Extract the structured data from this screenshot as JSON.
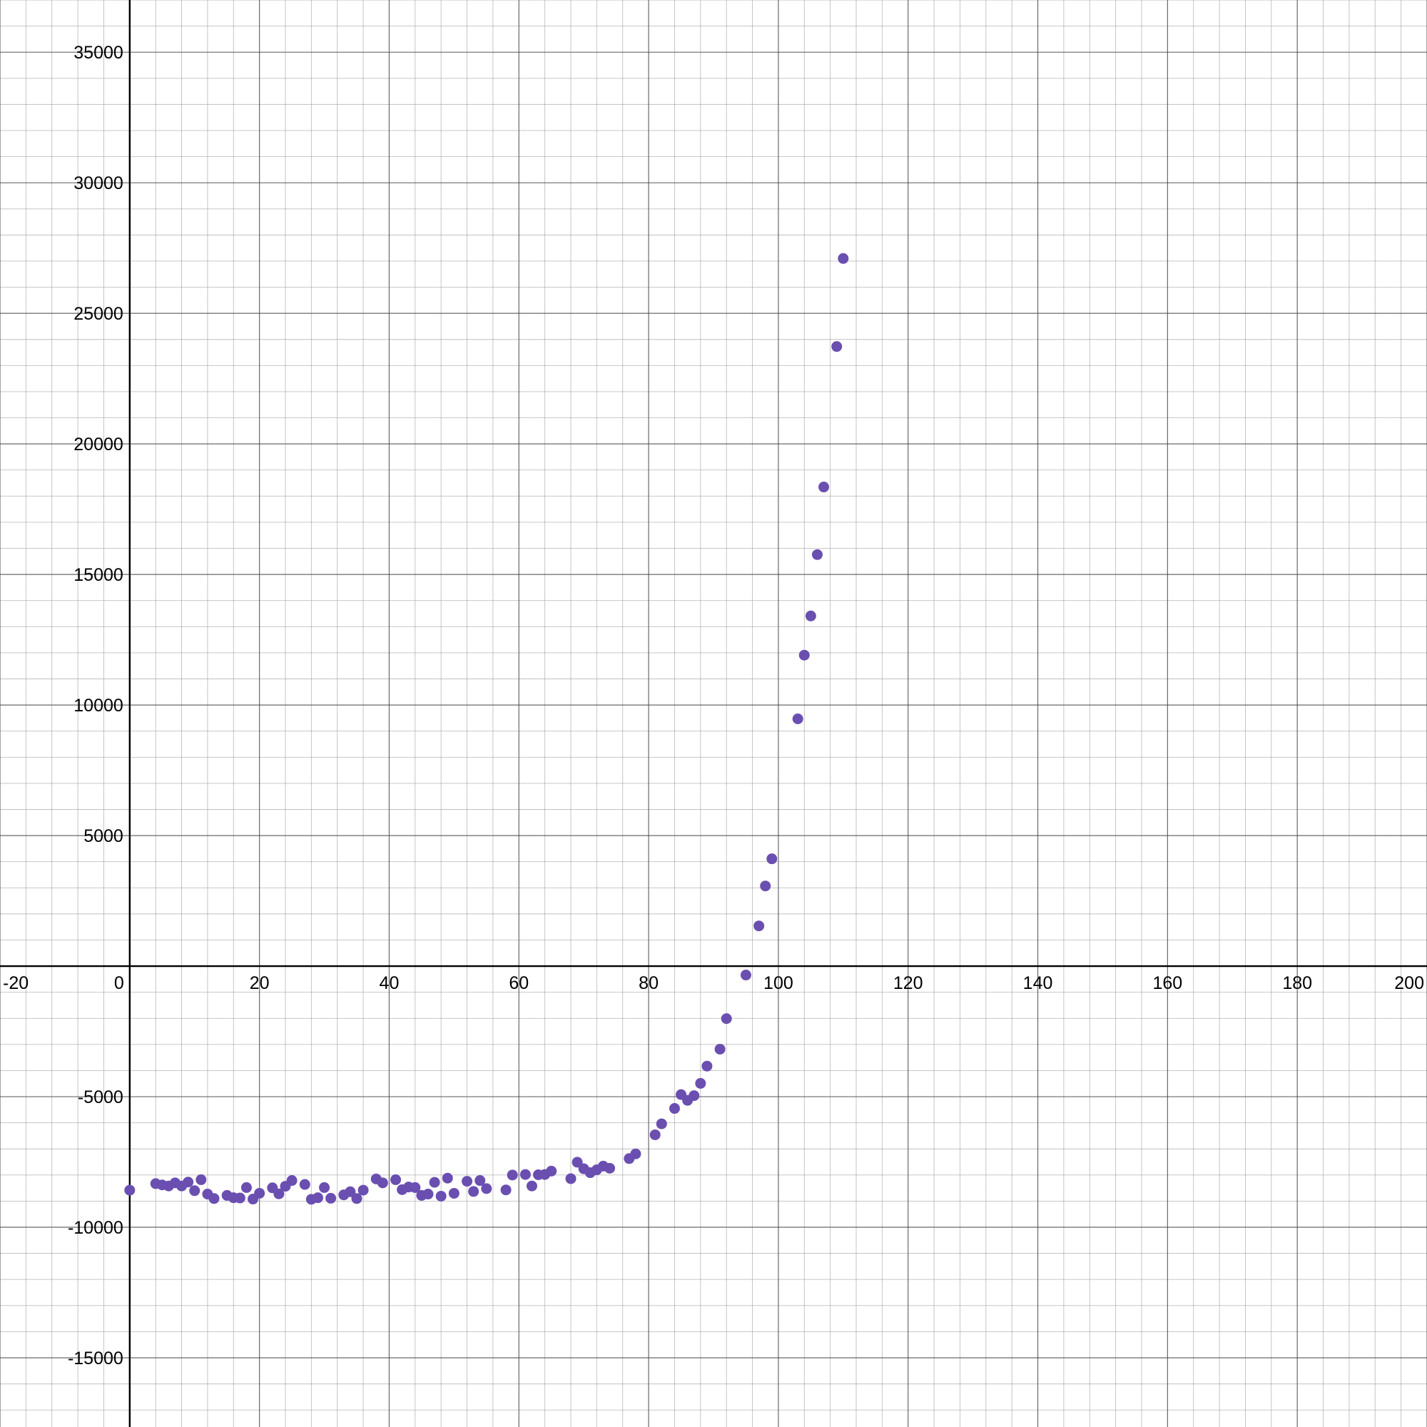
{
  "chart_data": {
    "type": "scatter",
    "title": "",
    "xlabel": "",
    "ylabel": "",
    "xlim": [
      -20,
      200
    ],
    "ylim": [
      -17650,
      37000
    ],
    "x_major_step": 20,
    "x_minor_step": 4,
    "y_major_step": 5000,
    "y_minor_step": 1000,
    "grid": true,
    "legend": "none",
    "point_color": "#6a4fb0",
    "x_tick_labels": [
      "-20",
      "0",
      "20",
      "40",
      "60",
      "80",
      "100",
      "120",
      "140",
      "160",
      "180",
      "200"
    ],
    "y_tick_labels": [
      "35000",
      "30000",
      "25000",
      "20000",
      "15000",
      "10000",
      "5000",
      "-5000",
      "-10000",
      "-15000"
    ],
    "series": [
      {
        "points": [
          [
            0,
            -8580
          ],
          [
            4,
            -8330
          ],
          [
            5,
            -8380
          ],
          [
            6,
            -8420
          ],
          [
            7,
            -8300
          ],
          [
            8,
            -8420
          ],
          [
            9,
            -8270
          ],
          [
            10,
            -8600
          ],
          [
            11,
            -8180
          ],
          [
            12,
            -8730
          ],
          [
            13,
            -8900
          ],
          [
            15,
            -8780
          ],
          [
            16,
            -8870
          ],
          [
            17,
            -8880
          ],
          [
            18,
            -8480
          ],
          [
            19,
            -8920
          ],
          [
            20,
            -8700
          ],
          [
            22,
            -8490
          ],
          [
            23,
            -8720
          ],
          [
            24,
            -8430
          ],
          [
            25,
            -8210
          ],
          [
            27,
            -8360
          ],
          [
            28,
            -8930
          ],
          [
            29,
            -8870
          ],
          [
            30,
            -8480
          ],
          [
            31,
            -8890
          ],
          [
            33,
            -8760
          ],
          [
            34,
            -8640
          ],
          [
            35,
            -8900
          ],
          [
            36,
            -8580
          ],
          [
            38,
            -8150
          ],
          [
            39,
            -8300
          ],
          [
            41,
            -8180
          ],
          [
            42,
            -8560
          ],
          [
            43,
            -8460
          ],
          [
            44,
            -8480
          ],
          [
            45,
            -8780
          ],
          [
            46,
            -8730
          ],
          [
            47,
            -8280
          ],
          [
            48,
            -8810
          ],
          [
            49,
            -8120
          ],
          [
            50,
            -8700
          ],
          [
            52,
            -8240
          ],
          [
            53,
            -8630
          ],
          [
            54,
            -8210
          ],
          [
            55,
            -8520
          ],
          [
            58,
            -8570
          ],
          [
            59,
            -8000
          ],
          [
            61,
            -7980
          ],
          [
            62,
            -8420
          ],
          [
            63,
            -7990
          ],
          [
            64,
            -7980
          ],
          [
            65,
            -7850
          ],
          [
            68,
            -8140
          ],
          [
            69,
            -7510
          ],
          [
            70,
            -7760
          ],
          [
            71,
            -7910
          ],
          [
            72,
            -7800
          ],
          [
            73,
            -7660
          ],
          [
            74,
            -7740
          ],
          [
            77,
            -7370
          ],
          [
            78,
            -7190
          ],
          [
            81,
            -6460
          ],
          [
            82,
            -6040
          ],
          [
            84,
            -5450
          ],
          [
            85,
            -4920
          ],
          [
            86,
            -5140
          ],
          [
            87,
            -4960
          ],
          [
            88,
            -4490
          ],
          [
            89,
            -3830
          ],
          [
            91,
            -3180
          ],
          [
            92,
            -2010
          ],
          [
            95,
            -340
          ],
          [
            97,
            1540
          ],
          [
            98,
            3070
          ],
          [
            99,
            4110
          ],
          [
            103,
            9470
          ],
          [
            104,
            11910
          ],
          [
            105,
            13410
          ],
          [
            106,
            15760
          ],
          [
            107,
            18350
          ],
          [
            109,
            23730
          ],
          [
            110,
            27100
          ]
        ]
      }
    ]
  }
}
